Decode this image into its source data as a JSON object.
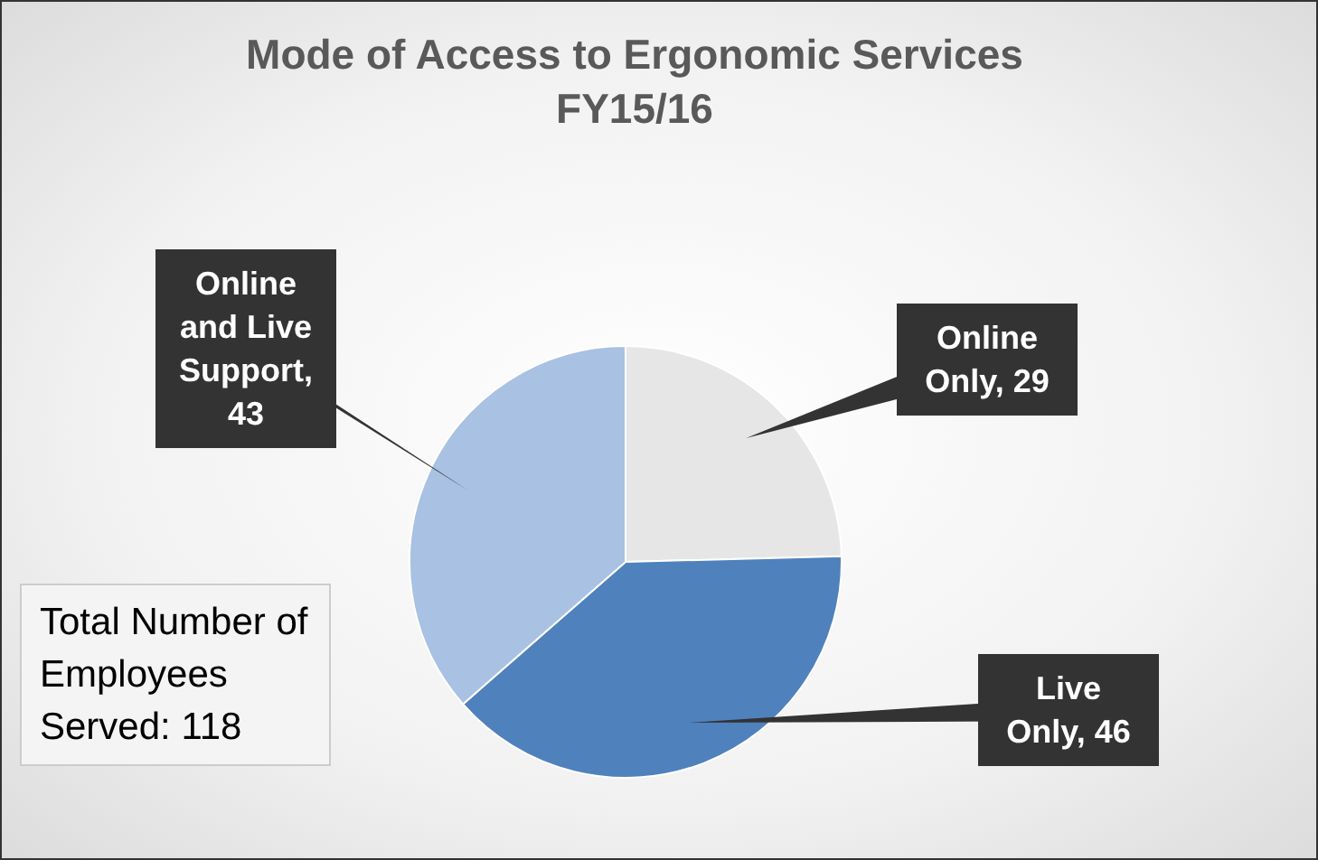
{
  "chart_data": {
    "type": "pie",
    "title": "Mode of Access to Ergonomic Services FY15/16",
    "categories": [
      "Online Only",
      "Live Only",
      "Online and Live Support"
    ],
    "values": [
      29,
      46,
      43
    ],
    "colors": [
      "#e6e6e6",
      "#4f81bd",
      "#a9c1e2"
    ],
    "value_labels": [
      ", 29",
      ", 46",
      ", 43"
    ],
    "legend": false,
    "annotations": [
      "Total Number of Employees Served: 118"
    ]
  }
}
